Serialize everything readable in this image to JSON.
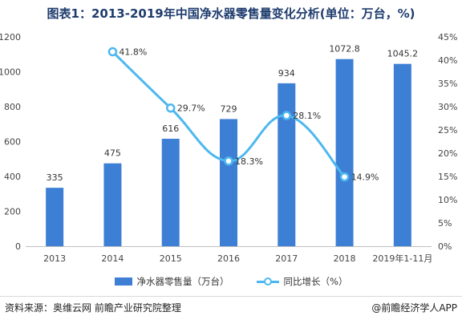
{
  "title": "图表1：2013-2019年中国净水器零售量变化分析(单位：万台，%)",
  "source": "资料来源：奥维云网 前瞻产业研究院整理",
  "brand": "@前瞻经济学人APP",
  "colors": {
    "bar": "#3d7fd4",
    "line": "#4db8ef",
    "title": "#1f3c6e"
  },
  "chart_data": {
    "type": "bar",
    "categories": [
      "2013",
      "2014",
      "2015",
      "2016",
      "2017",
      "2018",
      "2019年1-11月"
    ],
    "series": [
      {
        "name": "净水器零售量（万台）",
        "type": "bar",
        "axis": "left",
        "values": [
          335,
          475,
          616,
          729,
          934,
          1072.8,
          1045.2
        ],
        "labels": [
          "335",
          "475",
          "616",
          "729",
          "934",
          "1072.8",
          "1045.2"
        ]
      },
      {
        "name": "同比增长（%）",
        "type": "line",
        "axis": "right",
        "values": [
          null,
          41.8,
          29.7,
          18.3,
          28.1,
          14.9,
          null
        ],
        "labels": [
          null,
          "41.8%",
          "29.7%",
          "18.3%",
          "28.1%",
          "14.9%",
          null
        ]
      }
    ],
    "y_left": {
      "ylim": [
        0,
        1200
      ],
      "ticks": [
        "0",
        "200",
        "400",
        "600",
        "800",
        "1000",
        "1200"
      ]
    },
    "y_right": {
      "ylim": [
        0,
        45
      ],
      "ticks": [
        "0%",
        "5%",
        "10%",
        "15%",
        "20%",
        "25%",
        "30%",
        "35%",
        "40%",
        "45%"
      ]
    },
    "legend_position": "bottom",
    "grid": false
  }
}
